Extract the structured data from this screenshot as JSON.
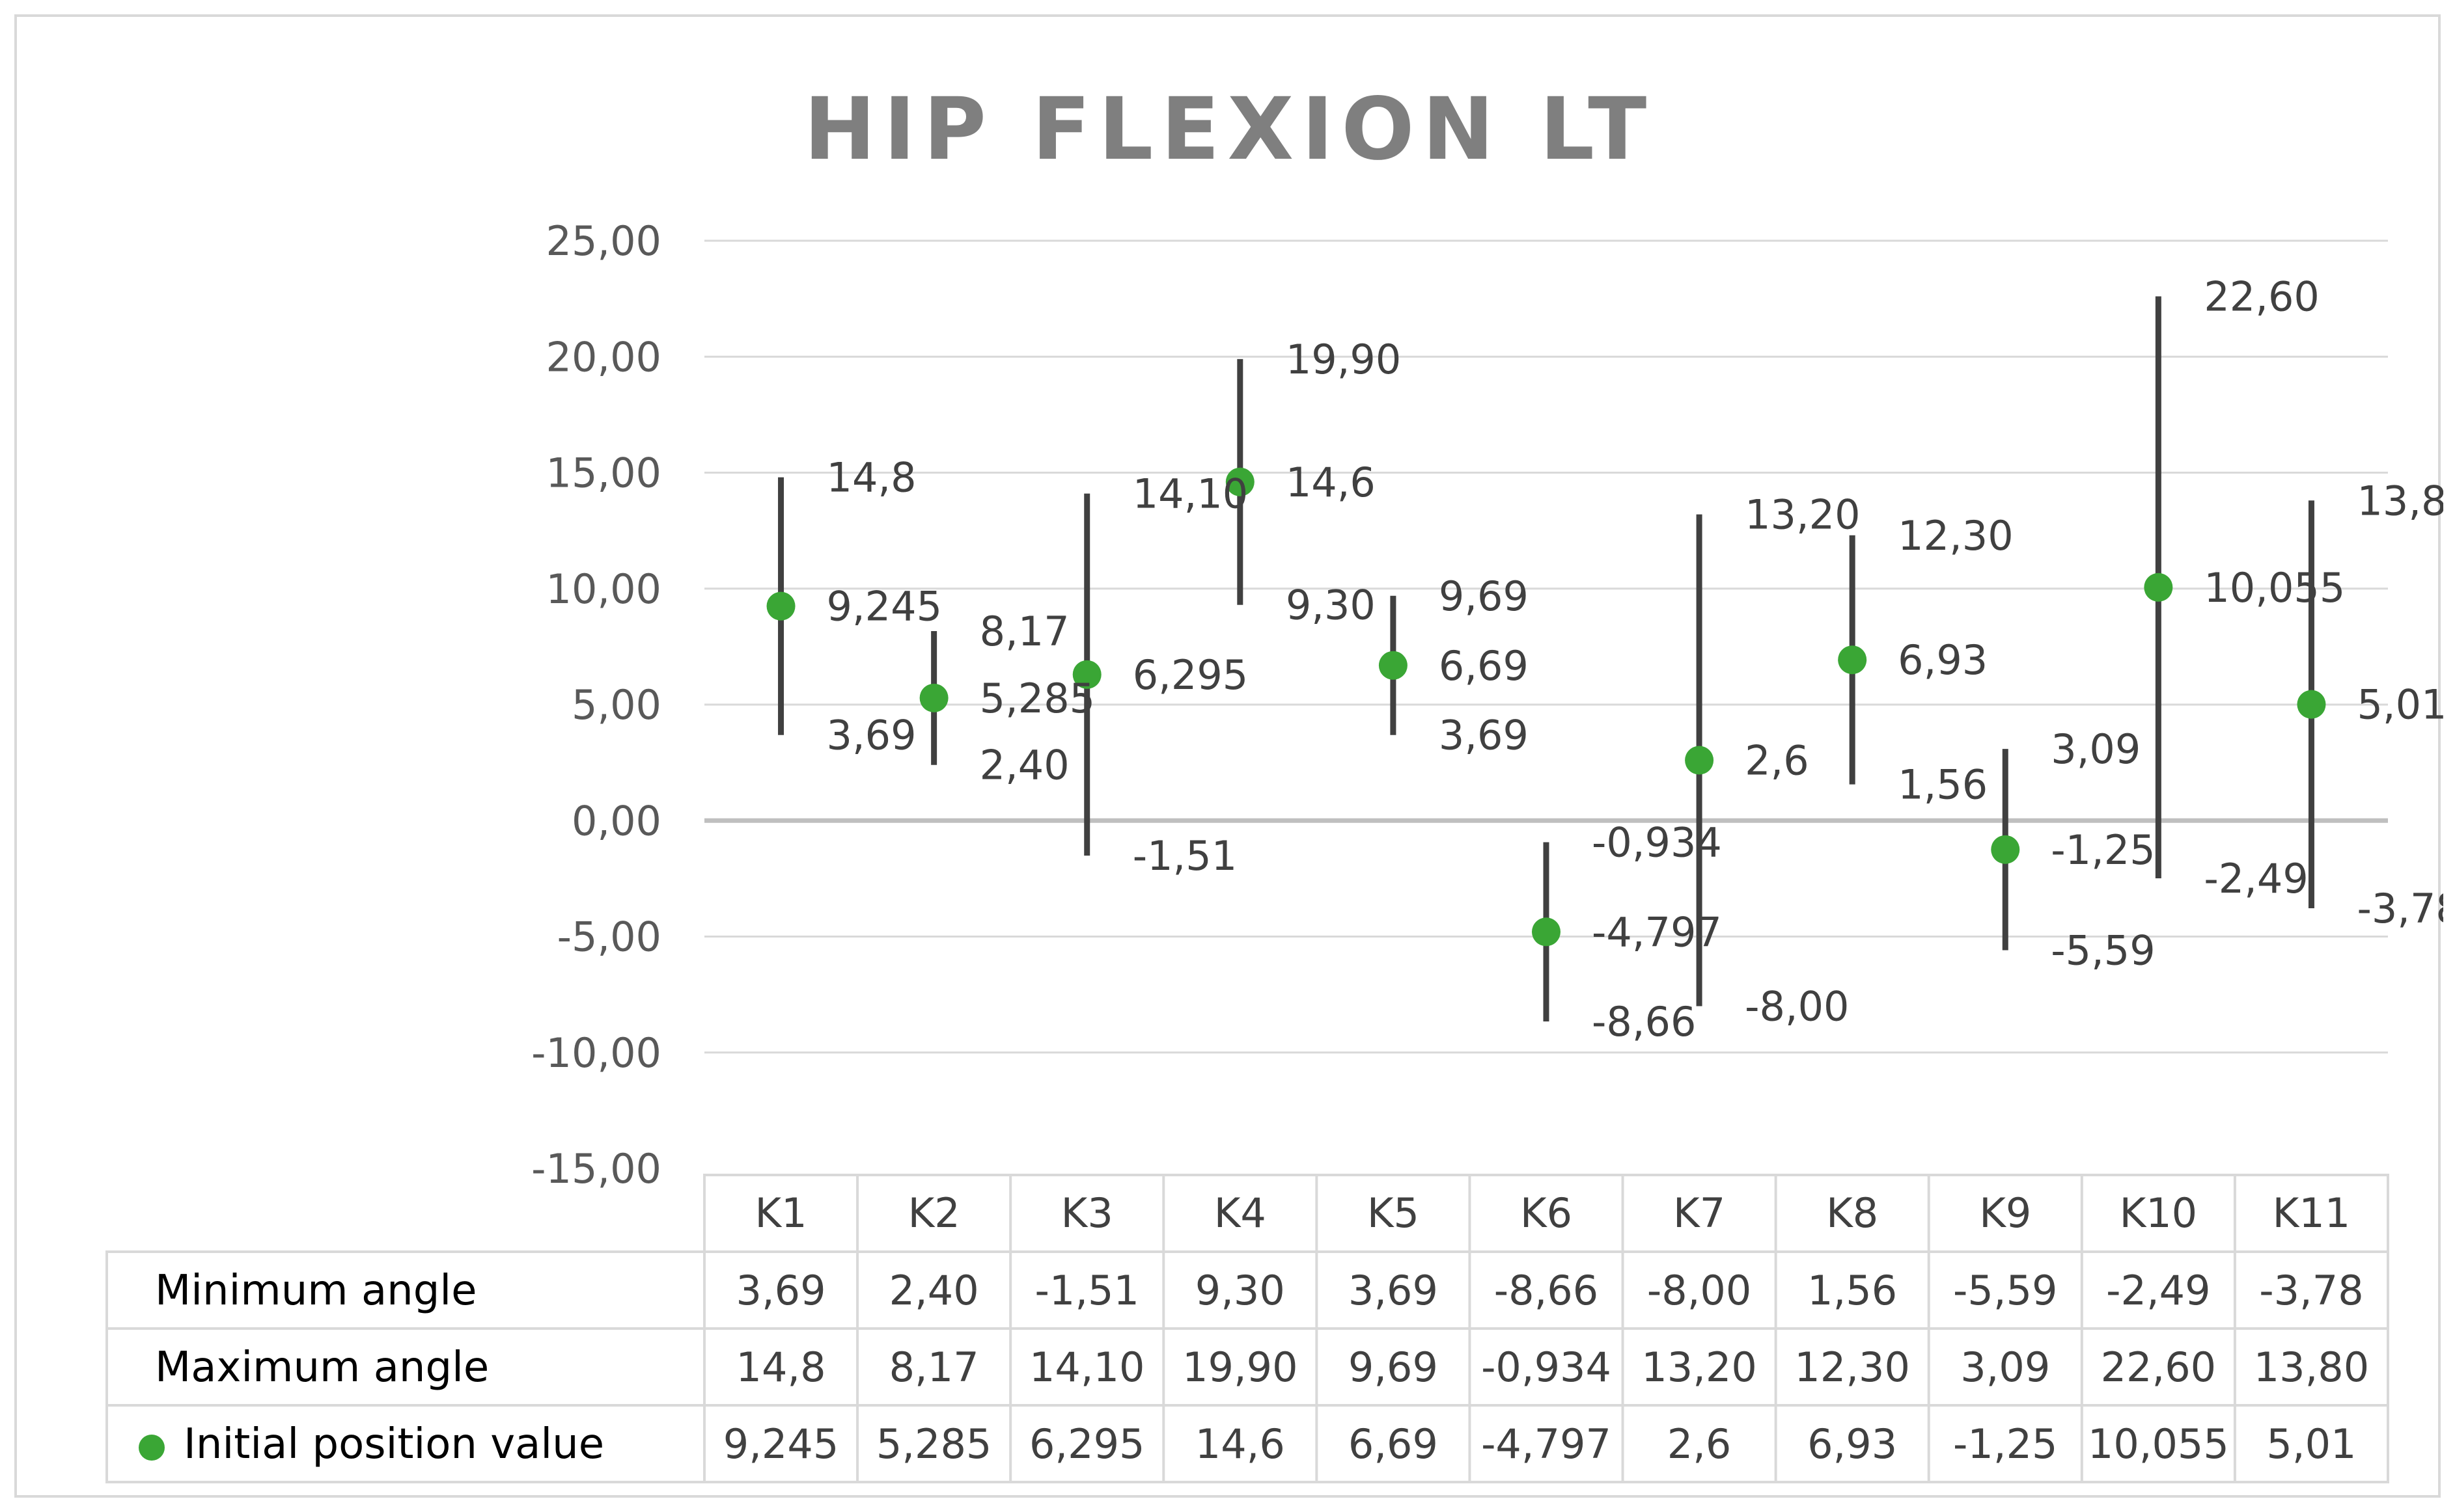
{
  "chart_data": {
    "type": "scatter",
    "title": "HIP FLEXION LT",
    "categories": [
      "K1",
      "K2",
      "K3",
      "K4",
      "K5",
      "K6",
      "K7",
      "K8",
      "K9",
      "K10",
      "K11"
    ],
    "ylim": [
      -15,
      25
    ],
    "yticks": [
      25,
      20,
      15,
      10,
      5,
      0,
      -5,
      -10,
      -15
    ],
    "ytick_labels": [
      "25,00",
      "20,00",
      "15,00",
      "10,00",
      "5,00",
      "0,00",
      "-5,00",
      "-10,00",
      "-15,00"
    ],
    "gridlines": true,
    "legend_placement": "data-table",
    "colors": {
      "marker": "#3aa635",
      "errorbar": "#404040",
      "grid": "#d9d9d9",
      "zero_line": "#bfbfbf"
    },
    "series": [
      {
        "name": "Minimum angle",
        "marker": false,
        "values": [
          3.69,
          2.4,
          -1.51,
          9.3,
          3.69,
          -8.66,
          -8.0,
          1.56,
          -5.59,
          -2.49,
          -3.78
        ],
        "labels": [
          "3,69",
          "2,40",
          "-1,51",
          "9,30",
          "3,69",
          "-8,66",
          "-8,00",
          "1,56",
          "-5,59",
          "-2,49",
          "-3,78"
        ]
      },
      {
        "name": "Maximum angle",
        "marker": false,
        "values": [
          14.8,
          8.17,
          14.1,
          19.9,
          9.69,
          -0.934,
          13.2,
          12.3,
          3.09,
          22.6,
          13.8
        ],
        "labels": [
          "14,8",
          "8,17",
          "14,10",
          "19,90",
          "9,69",
          "-0,934",
          "13,20",
          "12,30",
          "3,09",
          "22,60",
          "13,80"
        ]
      },
      {
        "name": "Initial position value",
        "marker": true,
        "values": [
          9.245,
          5.285,
          6.295,
          14.6,
          6.69,
          -4.797,
          2.6,
          6.93,
          -1.25,
          10.055,
          5.01
        ],
        "labels": [
          "9,245",
          "5,285",
          "6,295",
          "14,6",
          "6,69",
          "-4,797",
          "2,6",
          "6,93",
          "-1,25",
          "10,055",
          "5,01"
        ]
      }
    ]
  }
}
